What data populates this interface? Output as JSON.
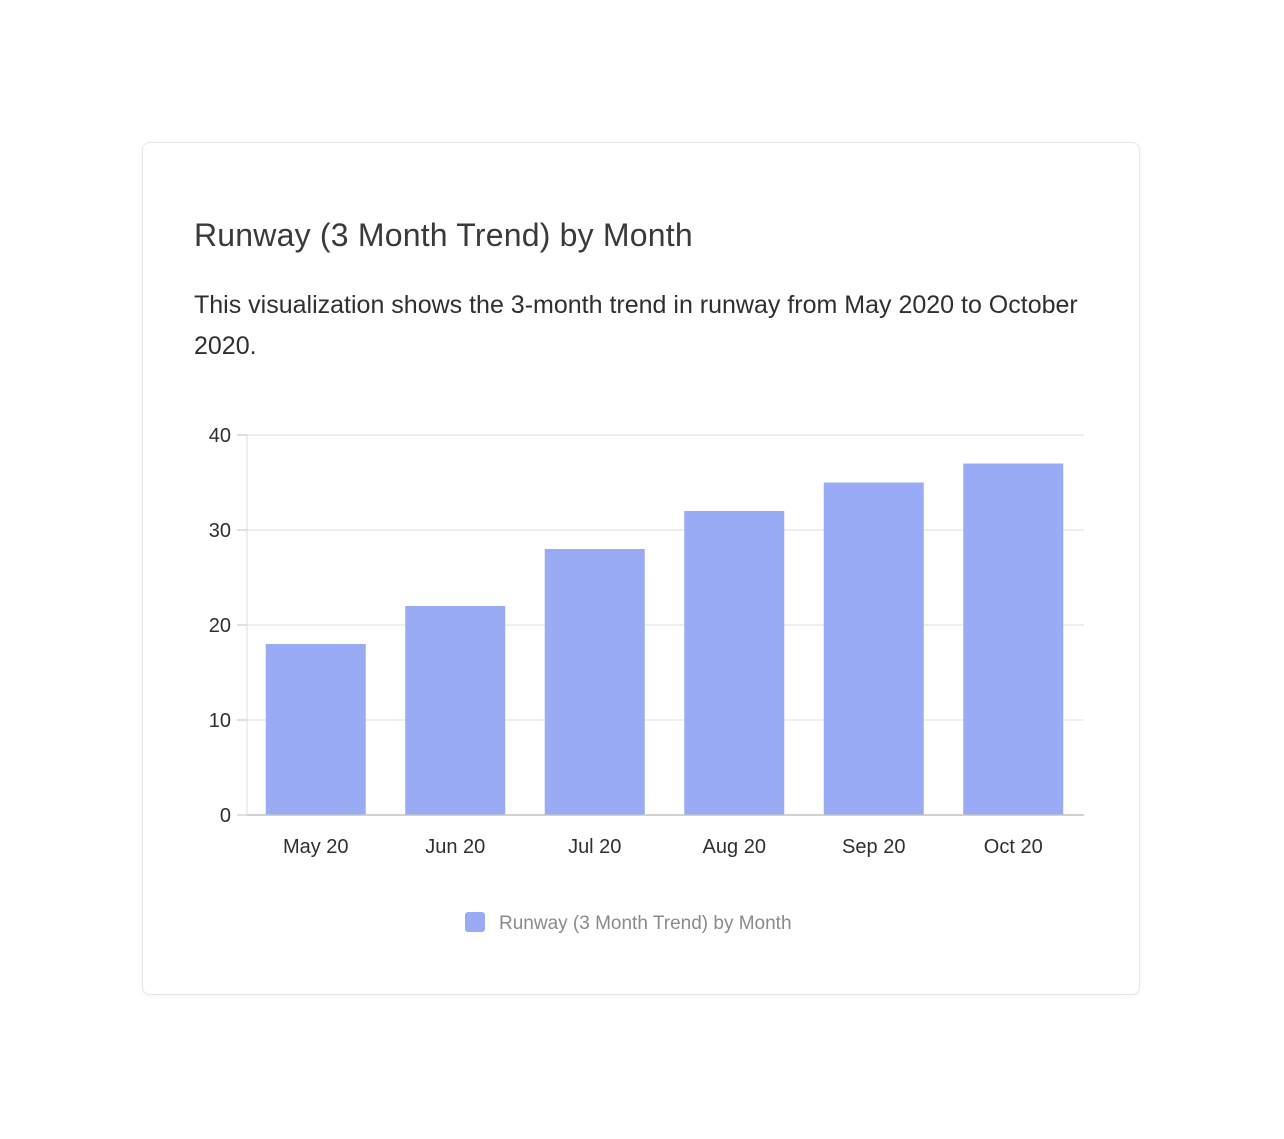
{
  "colors": {
    "bar": "#9aabf6",
    "grid": "#dcdcdc",
    "axis": "#c2c2c2"
  },
  "card": {
    "title": "Runway (3 Month Trend) by Month",
    "description": "This visualization shows the 3-month trend in runway from May 2020 to October 2020."
  },
  "chart_data": {
    "type": "bar",
    "categories": [
      "May 20",
      "Jun 20",
      "Jul 20",
      "Aug 20",
      "Sep 20",
      "Oct 20"
    ],
    "series": [
      {
        "name": "Runway (3 Month Trend) by Month",
        "values": [
          18,
          22,
          28,
          32,
          35,
          37
        ]
      }
    ],
    "ylim": [
      0,
      40
    ],
    "yticks": [
      0,
      10,
      20,
      30,
      40
    ],
    "grid": true,
    "legend": "bottom-center"
  }
}
